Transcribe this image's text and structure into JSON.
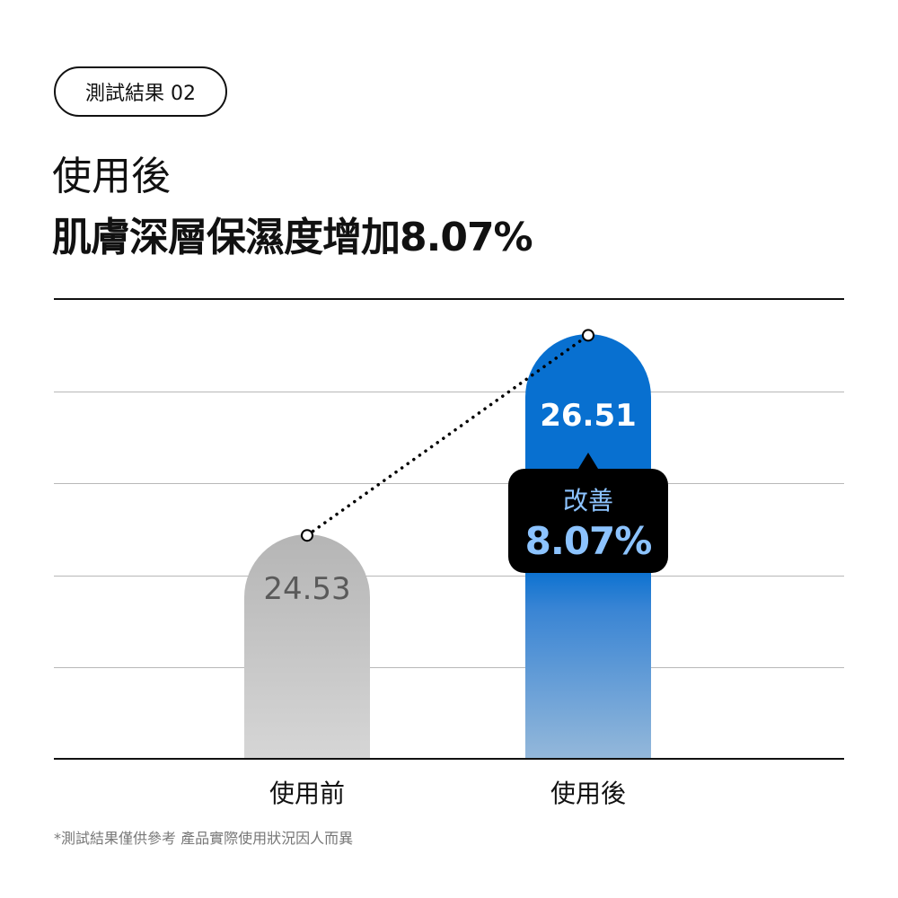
{
  "badge": "測試結果 02",
  "title_line1": "使用後",
  "title_line2": "肌膚深層保濕度增加8.07%",
  "callout": {
    "label": "改善",
    "value": "8.07%"
  },
  "footnote": "*測試結果僅供參考 產品實際使用狀況因人而異",
  "chart_data": {
    "type": "bar",
    "categories": [
      "使用前",
      "使用後"
    ],
    "values": [
      24.53,
      26.51
    ],
    "value_labels": [
      "24.53",
      "26.51"
    ],
    "ylim": [
      22.31,
      26.86
    ],
    "grid": true,
    "annotation": "改善 8.07%",
    "colors": [
      "#b5b5b5",
      "#0870d0"
    ]
  }
}
